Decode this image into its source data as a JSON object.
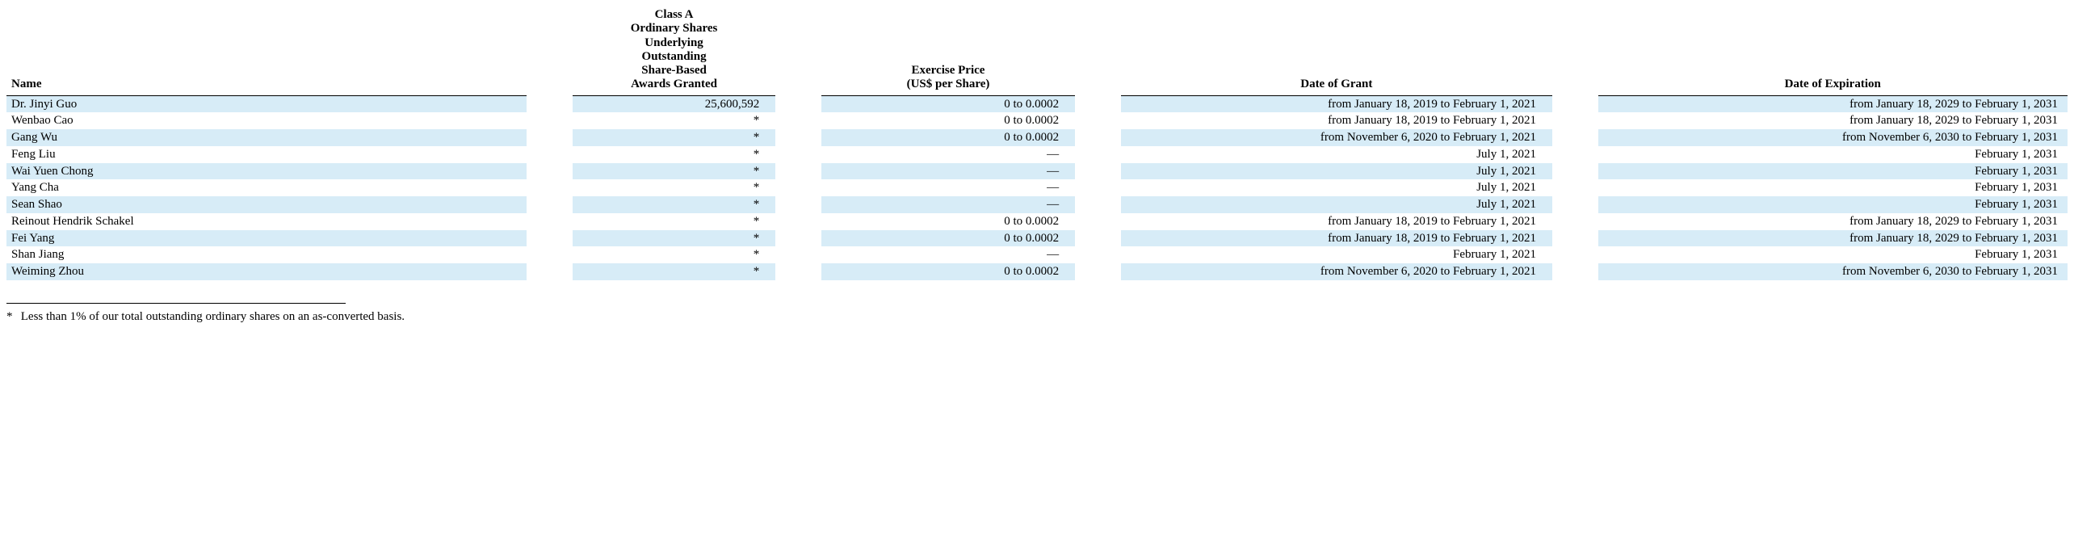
{
  "table": {
    "stripe_color": "#d7ecf7",
    "background_color": "#ffffff",
    "font_family": "Times New Roman",
    "header_border_color": "#000000",
    "columns": {
      "name": "Name",
      "shares": "Class A\nOrdinary Shares\nUnderlying\nOutstanding\nShare-Based\nAwards Granted",
      "price": "Exercise Price\n(US$ per Share)",
      "grant": "Date of Grant",
      "expiration": "Date of Expiration"
    },
    "rows": [
      {
        "name": "Dr. Jinyi Guo",
        "shares": "25,600,592",
        "price": "0 to 0.0002",
        "grant": "from January 18, 2019 to February 1, 2021",
        "expiration": "from January 18, 2029 to February 1, 2031"
      },
      {
        "name": "Wenbao Cao",
        "shares": "*",
        "price": "0 to 0.0002",
        "grant": "from January 18, 2019 to February 1, 2021",
        "expiration": "from January 18, 2029 to February 1, 2031"
      },
      {
        "name": "Gang Wu",
        "shares": "*",
        "price": "0 to 0.0002",
        "grant": "from November 6, 2020 to February 1, 2021",
        "expiration": "from November 6, 2030 to February 1, 2031"
      },
      {
        "name": "Feng Liu",
        "shares": "*",
        "price": "—",
        "grant": "July 1, 2021",
        "expiration": "February 1, 2031"
      },
      {
        "name": "Wai Yuen Chong",
        "shares": "*",
        "price": "—",
        "grant": "July 1, 2021",
        "expiration": "February 1, 2031"
      },
      {
        "name": "Yang Cha",
        "shares": "*",
        "price": "—",
        "grant": "July 1, 2021",
        "expiration": "February 1, 2031"
      },
      {
        "name": "Sean Shao",
        "shares": "*",
        "price": "—",
        "grant": "July 1, 2021",
        "expiration": "February 1, 2031"
      },
      {
        "name": "Reinout Hendrik Schakel",
        "shares": "*",
        "price": "0 to 0.0002",
        "grant": "from January 18, 2019 to February 1, 2021",
        "expiration": "from January 18, 2029 to February 1, 2031"
      },
      {
        "name": "Fei Yang",
        "shares": "*",
        "price": "0 to 0.0002",
        "grant": "from January 18, 2019 to February 1, 2021",
        "expiration": "from January 18, 2029 to February 1, 2031"
      },
      {
        "name": "Shan Jiang",
        "shares": "*",
        "price": "—",
        "grant": "February 1, 2021",
        "expiration": "February 1, 2031"
      },
      {
        "name": "Weiming Zhou",
        "shares": "*",
        "price": "0 to 0.0002",
        "grant": "from November 6, 2020 to February 1, 2021",
        "expiration": "from November 6, 2030 to February 1, 2031"
      }
    ]
  },
  "footnote": {
    "marker": "*",
    "text": "Less than 1% of our total outstanding ordinary shares on an as-converted basis."
  }
}
